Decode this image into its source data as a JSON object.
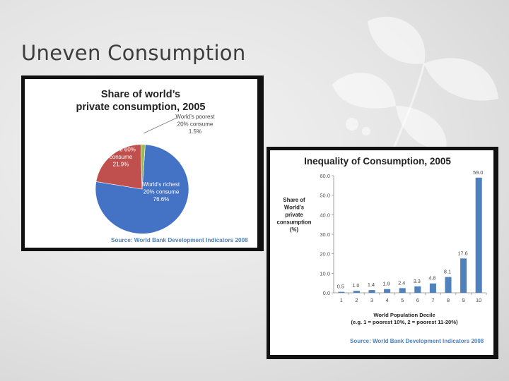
{
  "slide": {
    "title": "Uneven Consumption"
  },
  "chart_data": [
    {
      "type": "pie",
      "title": "Share of world’s private consumption, 2005",
      "title_lines": [
        "Share of world’s",
        "private consumption, 2005"
      ],
      "slices": [
        {
          "label_lines": [
            "World’s richest",
            "20% consume",
            "76.6%"
          ],
          "value": 76.6,
          "color": "#4472c4"
        },
        {
          "label_lines": [
            "World’s",
            "middle 60%",
            "consume",
            "21.9%"
          ],
          "value": 21.9,
          "color": "#c0504d"
        },
        {
          "label_lines": [
            "World’s poorest",
            "20% consume",
            "1.5%"
          ],
          "value": 1.5,
          "color": "#9bbb59"
        }
      ],
      "source": "Source: World Bank Development Indicators 2008",
      "legend": "none"
    },
    {
      "type": "bar",
      "title": "Inequality of Consumption, 2005",
      "categories": [
        "1",
        "2",
        "3",
        "4",
        "5",
        "6",
        "7",
        "8",
        "9",
        "10"
      ],
      "values": [
        0.5,
        1.0,
        1.4,
        1.9,
        2.4,
        3.3,
        4.8,
        8.1,
        17.6,
        59.0
      ],
      "value_labels": [
        "0.5",
        "1.0",
        "1.4",
        "1.9",
        "2.4",
        "3.3",
        "4.8",
        "8.1",
        "17.6",
        "59.0"
      ],
      "yticks": [
        "0.0",
        "10.0",
        "20.0",
        "30.0",
        "40.0",
        "50.0",
        "60.0"
      ],
      "ylim": [
        0,
        60
      ],
      "ylabel_lines": [
        "Share of",
        "World’s",
        "private",
        "consumption",
        "(%)"
      ],
      "xlabel_lines": [
        "World Population Decile",
        "(e.g. 1 = poorest 10%, 2 = poorest 11-20%)"
      ],
      "bar_color": "#4f81bd",
      "grid": false,
      "source": "Source: World Bank Development Indicators 2008"
    }
  ]
}
